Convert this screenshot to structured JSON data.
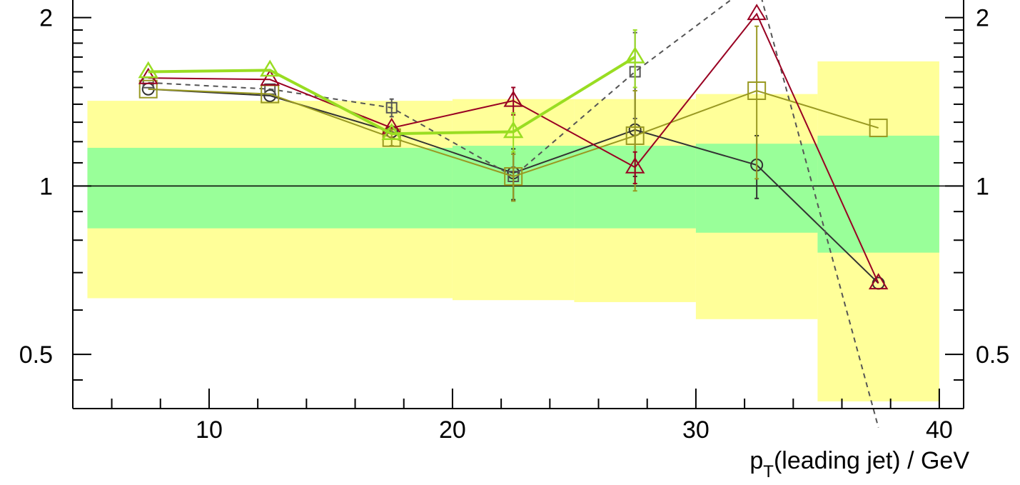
{
  "chart_data": {
    "type": "line",
    "title": "",
    "xlabel": {
      "main": "p",
      "sub": "T",
      "rest": "(leading jet) / GeV"
    },
    "ylabel": "",
    "xlim": [
      4.4,
      41.0
    ],
    "ylim": [
      0.4,
      2.15
    ],
    "y_scale": "log",
    "x_ticks": [
      "10",
      "20",
      "30",
      "40"
    ],
    "x_tick_values": [
      10,
      20,
      30,
      40
    ],
    "y_ticks_left": [
      "0.5",
      "1",
      "2"
    ],
    "y_ticks_right": [
      "0.5",
      "1",
      "2"
    ],
    "y_tick_values": [
      0.5,
      1,
      2
    ],
    "reference_line": 1,
    "bands": {
      "yellow": {
        "color": "#ffff99",
        "bins": [
          {
            "x0": 5,
            "x1": 20,
            "lo": 0.63,
            "hi": 1.42
          },
          {
            "x0": 20,
            "x1": 25,
            "lo": 0.625,
            "hi": 1.43
          },
          {
            "x0": 25,
            "x1": 30,
            "lo": 0.62,
            "hi": 1.43
          },
          {
            "x0": 30,
            "x1": 35,
            "lo": 0.578,
            "hi": 1.46
          },
          {
            "x0": 35,
            "x1": 40,
            "lo": 0.412,
            "hi": 1.67
          }
        ]
      },
      "green": {
        "color": "#99ff99",
        "bins": [
          {
            "x0": 5,
            "x1": 20,
            "lo": 0.84,
            "hi": 1.17
          },
          {
            "x0": 20,
            "x1": 25,
            "lo": 0.84,
            "hi": 1.18
          },
          {
            "x0": 25,
            "x1": 30,
            "lo": 0.84,
            "hi": 1.18
          },
          {
            "x0": 30,
            "x1": 35,
            "lo": 0.825,
            "hi": 1.19
          },
          {
            "x0": 35,
            "x1": 40,
            "lo": 0.76,
            "hi": 1.23
          }
        ]
      }
    },
    "series": [
      {
        "color": "#333333",
        "marker": "circle",
        "dash": false,
        "width": 2,
        "x": [
          7.5,
          12.5,
          17.5,
          22.5,
          27.5,
          32.5,
          37.5
        ],
        "y": [
          1.49,
          1.45,
          1.25,
          1.055,
          1.26,
          1.09,
          0.67
        ],
        "err": [
          0,
          0,
          0,
          0.11,
          0.22,
          0.14,
          0
        ]
      },
      {
        "color": "#555555",
        "marker": "square-small",
        "dash": true,
        "width": 2,
        "x": [
          7.5,
          12.5,
          17.5,
          22.5,
          27.5,
          32.5,
          37.5
        ],
        "y": [
          1.53,
          1.49,
          1.38,
          1.04,
          1.6,
          2.33,
          0.37
        ],
        "err": [
          0,
          0,
          0.05,
          0.1,
          0.28,
          0,
          0
        ]
      },
      {
        "color": "#999922",
        "marker": "square",
        "dash": false,
        "width": 2,
        "x": [
          7.5,
          12.5,
          17.5,
          22.5,
          27.5,
          32.5,
          37.5
        ],
        "y": [
          1.49,
          1.46,
          1.22,
          1.04,
          1.23,
          1.48,
          1.27
        ],
        "err": [
          0,
          0,
          0.04,
          0.1,
          0.25,
          0.45,
          0
        ]
      },
      {
        "color": "#990022",
        "marker": "triangle",
        "dash": false,
        "width": 2,
        "x": [
          7.5,
          12.5,
          17.5,
          22.5,
          27.5,
          32.5,
          37.5
        ],
        "y": [
          1.56,
          1.55,
          1.27,
          1.42,
          1.08,
          2.03,
          0.67
        ],
        "err": [
          0,
          0,
          0,
          0.08,
          0.07,
          0,
          0
        ]
      },
      {
        "color": "#99dd22",
        "marker": "triangle",
        "dash": false,
        "width": 4,
        "x": [
          7.5,
          12.5,
          17.5,
          22.5,
          27.5
        ],
        "y": [
          1.6,
          1.61,
          1.24,
          1.25,
          1.7
        ],
        "err": [
          0,
          0,
          0,
          0.1,
          0.2
        ]
      }
    ]
  }
}
